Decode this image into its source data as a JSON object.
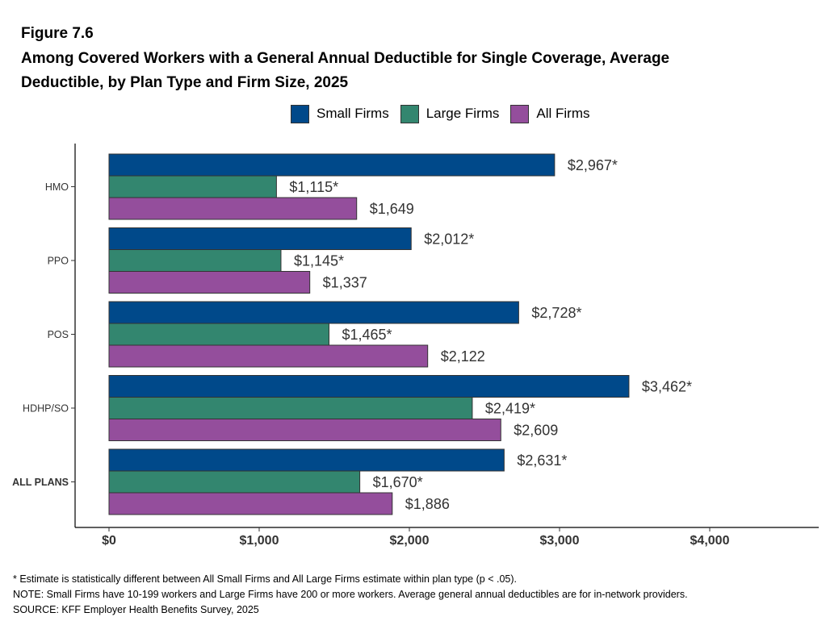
{
  "figure": {
    "label": "Figure 7.6",
    "title_line1": "Among Covered Workers with a General Annual Deductible for Single Coverage, Average",
    "title_line2": "Deductible, by Plan Type and Firm Size, 2025"
  },
  "colors": {
    "small_firms": "#00498A",
    "large_firms": "#33866F",
    "all_firms": "#944E9C",
    "bar_outline": "#333333"
  },
  "chart_data": {
    "type": "bar",
    "orientation": "horizontal",
    "categories": [
      "HMO",
      "PPO",
      "POS",
      "HDHP/SO",
      "ALL PLANS"
    ],
    "series": [
      {
        "name": "Small Firms",
        "values": [
          2967,
          2012,
          2728,
          3462,
          2631
        ],
        "labels": [
          "$2,967*",
          "$2,012*",
          "$2,728*",
          "$3,462*",
          "$2,631*"
        ]
      },
      {
        "name": "Large Firms",
        "values": [
          1115,
          1145,
          1465,
          2419,
          1670
        ],
        "labels": [
          "$1,115*",
          "$1,145*",
          "$1,465*",
          "$2,419*",
          "$1,670*"
        ]
      },
      {
        "name": "All Firms",
        "values": [
          1649,
          1337,
          2122,
          2609,
          1886
        ],
        "labels": [
          "$1,649",
          "$1,337",
          "$2,122",
          "$2,609",
          "$1,886"
        ]
      }
    ],
    "xlim": [
      0,
      4500
    ],
    "x_ticks": [
      0,
      1000,
      2000,
      3000,
      4000
    ],
    "x_tick_labels": [
      "$0",
      "$1,000",
      "$2,000",
      "$3,000",
      "$4,000"
    ],
    "xlabel": "",
    "ylabel": "",
    "grid": false,
    "legend": "top"
  },
  "footnotes": {
    "asterisk": "* Estimate is statistically different between All Small Firms and All Large Firms estimate within plan type (p < .05).",
    "note": "NOTE: Small Firms have 10-199 workers and Large Firms have 200 or more workers. Average general annual deductibles are for in-network providers.",
    "source": "SOURCE: KFF Employer Health Benefits Survey, 2025"
  }
}
